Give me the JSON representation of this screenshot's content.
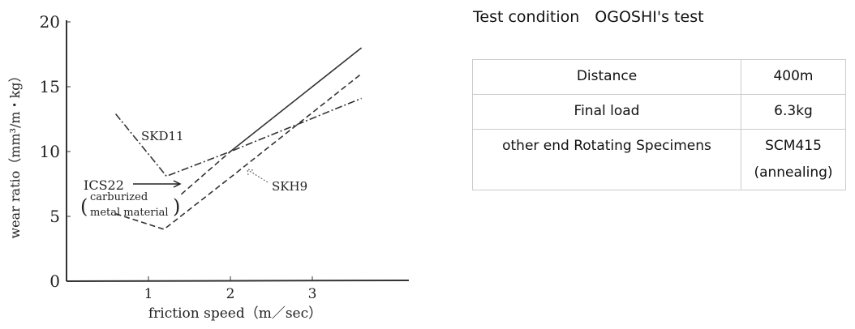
{
  "chart_data": {
    "type": "line",
    "xlabel": "friction speed（m／sec）",
    "ylabel": "wear ratio（mm³/m・kg）",
    "xlim": [
      0,
      4.2
    ],
    "ylim": [
      0,
      20
    ],
    "x_ticks": [
      "1",
      "2",
      "3"
    ],
    "y_ticks": [
      "0",
      "5",
      "10",
      "15",
      "20"
    ],
    "grid": false,
    "series": [
      {
        "name": "ICS22",
        "style": "dashed-then-solid",
        "points": [
          [
            1.4,
            6.7
          ],
          [
            2.0,
            10.0
          ],
          [
            3.6,
            18.0
          ]
        ]
      },
      {
        "name": "SKD11",
        "style": "dash-dot",
        "points": [
          [
            0.6,
            12.9
          ],
          [
            1.22,
            8.1
          ],
          [
            2.0,
            10.0
          ],
          [
            3.6,
            14.1
          ]
        ]
      },
      {
        "name": "SKH9",
        "style": "dashed",
        "points": [
          [
            0.6,
            5.2
          ],
          [
            1.19,
            4.0
          ],
          [
            2.0,
            8.0
          ],
          [
            3.6,
            16.0
          ]
        ]
      }
    ],
    "annotations": {
      "skd11": "SKD11",
      "skh9": "SKH9",
      "ics22": "ICS22",
      "ics22_note_1": "carburized",
      "ics22_note_2": "metal material"
    }
  },
  "conditions": {
    "title": "Test condition　OGOSHI's test",
    "rows": [
      {
        "key": "Distance",
        "value": "400m"
      },
      {
        "key": "Final load",
        "value": "6.3kg"
      },
      {
        "key": "other end Rotating Specimens",
        "value": "SCM415",
        "value2": "(annealing)"
      }
    ]
  }
}
